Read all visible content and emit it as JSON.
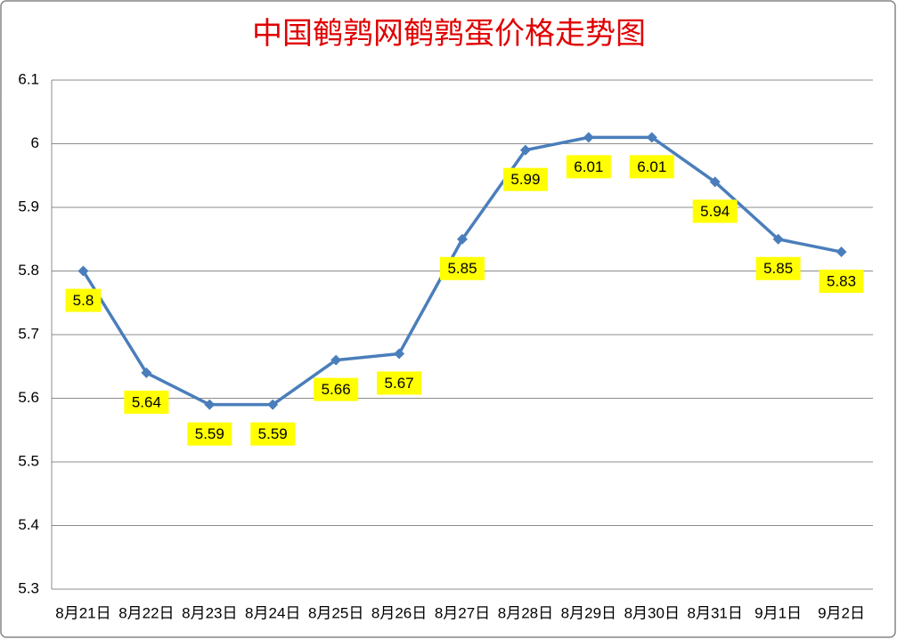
{
  "chart_data": {
    "type": "line",
    "title": "中国鹌鹑网鹌鹑蛋价格走势图",
    "categories": [
      "8月21日",
      "8月22日",
      "8月23日",
      "8月24日",
      "8月25日",
      "8月26日",
      "8月27日",
      "8月28日",
      "8月29日",
      "8月30日",
      "8月31日",
      "9月1日",
      "9月2日"
    ],
    "values": [
      5.8,
      5.64,
      5.59,
      5.59,
      5.66,
      5.67,
      5.85,
      5.99,
      6.01,
      6.01,
      5.94,
      5.85,
      5.83
    ],
    "color": "#4a7ebb",
    "ylim": [
      5.3,
      6.1
    ],
    "yticks": [
      5.3,
      5.4,
      5.5,
      5.6,
      5.7,
      5.8,
      5.9,
      6,
      6.1
    ],
    "grid": true
  }
}
